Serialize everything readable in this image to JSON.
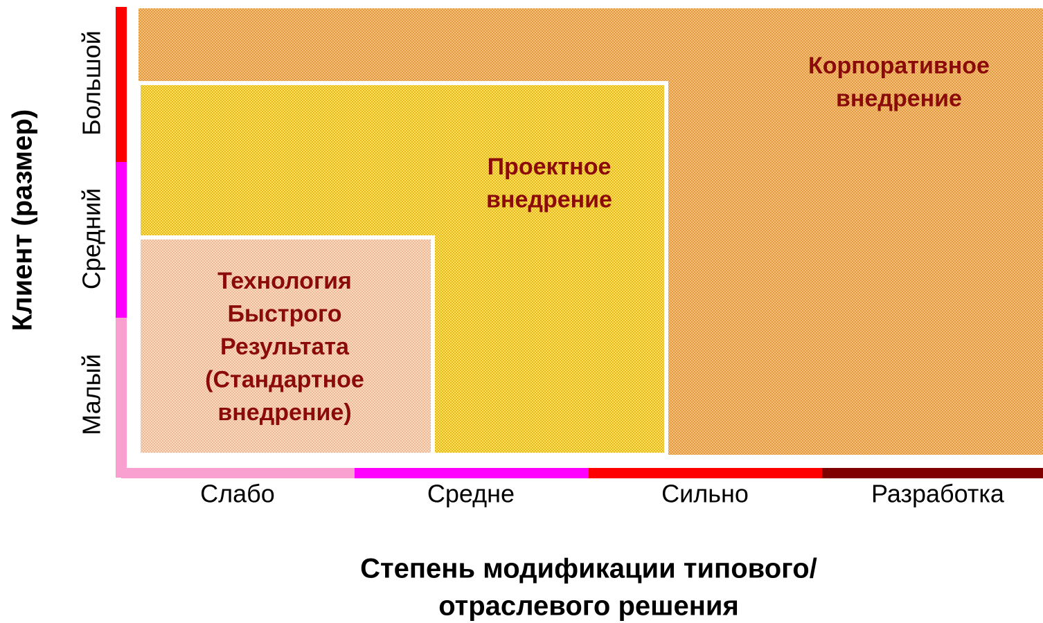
{
  "y_axis": {
    "title": "Клиент (размер)",
    "levels": [
      "Малый",
      "Средний",
      "Большой"
    ]
  },
  "x_axis": {
    "title_lines": [
      "Степень модификации типового/",
      "отраслевого решения"
    ],
    "levels": [
      "Слабо",
      "Средне",
      "Сильно",
      "Разработка"
    ]
  },
  "regions": [
    {
      "lines": [
        "Корпоративное",
        "внедрение"
      ]
    },
    {
      "lines": [
        "Проектное",
        "внедрение"
      ]
    },
    {
      "lines": [
        "Технология",
        "Быстрого",
        "Результата",
        "(Стандартное",
        "внедрение)"
      ]
    }
  ]
}
